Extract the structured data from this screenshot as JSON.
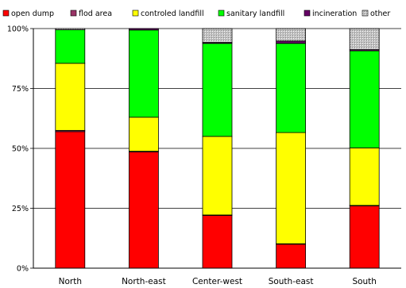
{
  "chart_data": {
    "type": "bar",
    "stacked": true,
    "categories": [
      "North",
      "North-east",
      "Center-west",
      "South-east",
      "South"
    ],
    "series": [
      {
        "name": "open dump",
        "color": "#FF0000",
        "values": [
          57,
          48.5,
          22,
          10,
          26
        ]
      },
      {
        "name": "flod area",
        "color": "#993366",
        "values": [
          0.5,
          0.3,
          0.2,
          0.2,
          0.2
        ]
      },
      {
        "name": "controled landfill",
        "color": "#FFFF00",
        "values": [
          28,
          14.2,
          32.8,
          46.4,
          24
        ]
      },
      {
        "name": "sanitary landfill",
        "color": "#00FF00",
        "values": [
          14,
          36.4,
          38.8,
          37.2,
          40.5
        ]
      },
      {
        "name": "incineration",
        "color": "#660066",
        "values": [
          0,
          0.6,
          0.4,
          1,
          0.5
        ]
      },
      {
        "name": "other",
        "color": "#C0C0C0",
        "values": [
          0.5,
          0,
          5.8,
          5.2,
          8.8
        ]
      }
    ],
    "y_ticks": [
      "0%",
      "25%",
      "50%",
      "75%",
      "100%"
    ],
    "ylim": [
      0,
      100
    ],
    "grid": true,
    "legend_position": "top"
  }
}
